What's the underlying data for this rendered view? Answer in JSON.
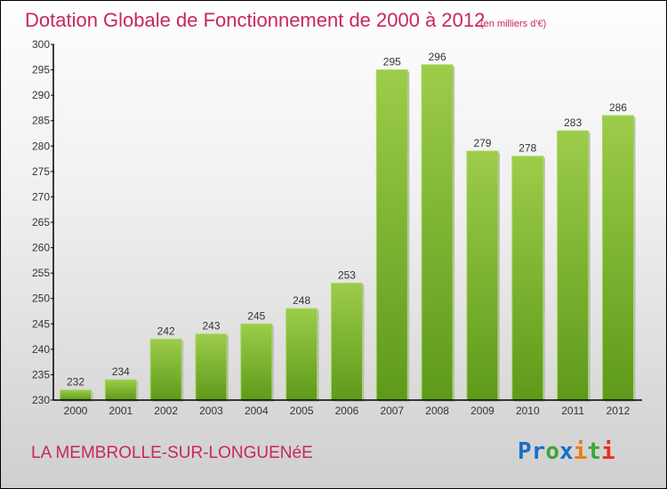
{
  "chart_data": {
    "type": "bar",
    "title": "Dotation Globale de Fonctionnement de 2000 à 2012",
    "subtitle": "(en milliers d'€)",
    "categories": [
      "2000",
      "2001",
      "2002",
      "2003",
      "2004",
      "2005",
      "2006",
      "2007",
      "2008",
      "2009",
      "2010",
      "2011",
      "2012"
    ],
    "values": [
      232,
      234,
      242,
      243,
      245,
      248,
      253,
      295,
      296,
      279,
      278,
      283,
      286
    ],
    "ylim": [
      230,
      300
    ],
    "yticks": [
      230,
      235,
      240,
      245,
      250,
      255,
      260,
      265,
      270,
      275,
      280,
      285,
      290,
      295,
      300
    ],
    "xlabel": "",
    "ylabel": "",
    "grid": false
  },
  "place": "LA MEMBROLLE-SUR-LONGUENéE",
  "brand": {
    "letters": [
      "P",
      "r",
      "o",
      "x",
      "i",
      "t",
      "i"
    ],
    "colors": [
      "#1a6fc9",
      "#1a6fc9",
      "#3aa63a",
      "#1a6fc9",
      "#f07a10",
      "#3aa63a",
      "#e83020"
    ]
  },
  "colors": {
    "title": "#c8285a",
    "bar_top": "#9ccc4a",
    "bar_bottom": "#5e9a1a"
  }
}
